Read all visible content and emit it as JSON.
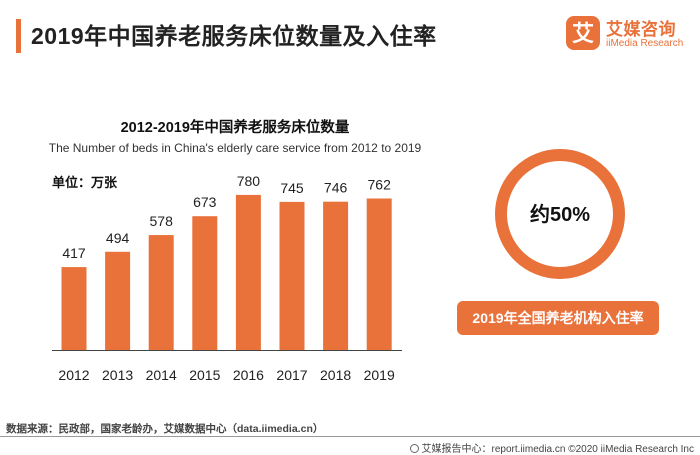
{
  "page": {
    "title": "2019年中国养老服务床位数量及入住率"
  },
  "brand": {
    "name_cn": "艾媒咨询",
    "name_en": "iiMedia Research",
    "logo_char": "艾",
    "color": "#e9713a"
  },
  "chart_data": {
    "type": "bar",
    "title": "2012-2019年中国养老服务床位数量",
    "subtitle": "The Number of beds in China's elderly care service from 2012 to 2019",
    "unit": "单位：万张",
    "categories": [
      "2012",
      "2013",
      "2014",
      "2015",
      "2016",
      "2017",
      "2018",
      "2019"
    ],
    "values": [
      417,
      494,
      578,
      673,
      780,
      745,
      746,
      762
    ],
    "data_labels": [
      "417",
      "494",
      "578",
      "673",
      "780",
      "745",
      "746",
      "762"
    ],
    "bar_color": "#e9713a",
    "ylim": [
      0,
      850
    ],
    "grid": false,
    "legend": "none"
  },
  "occupancy": {
    "value": "约50%",
    "label": "2019年全国养老机构入住率"
  },
  "footer": {
    "source": "数据来源：民政部，国家老龄办，艾媒数据中心（data.iimedia.cn）",
    "copyright": "艾媒报告中心：report.iimedia.cn  ©2020  iiMedia Research  Inc"
  }
}
